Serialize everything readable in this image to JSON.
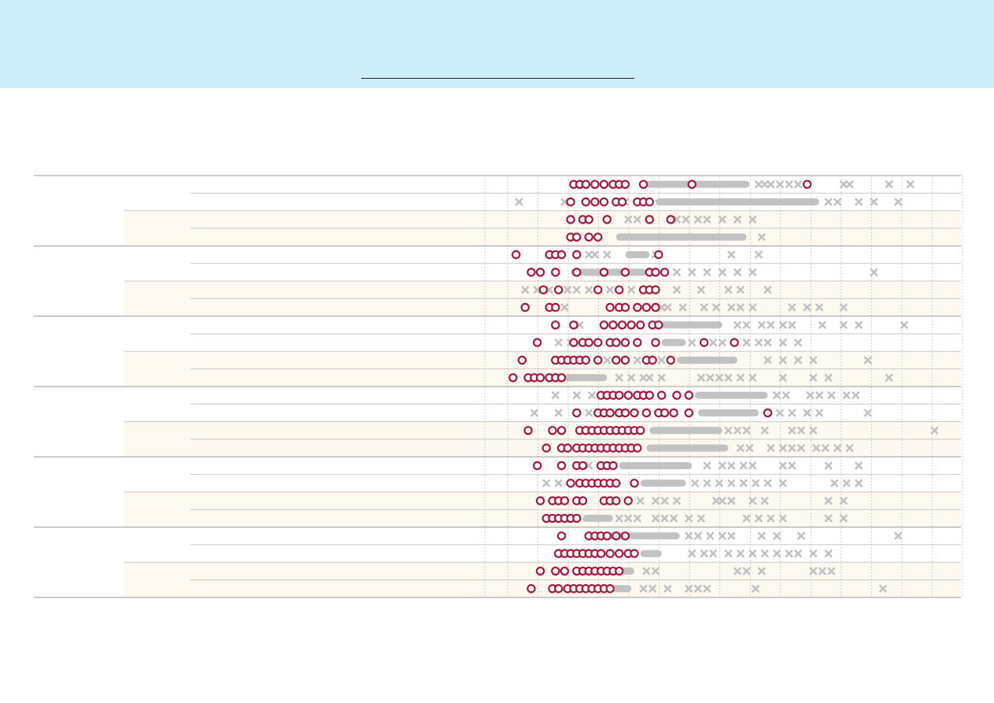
{
  "page": {
    "header_band_color": "#cdeefa",
    "row_band_color": "#fdf8f0",
    "grid_color": "#bbbbbb"
  },
  "chart_data": {
    "type": "scatter",
    "title": "",
    "xlabel": "",
    "ylabel": "",
    "xlim": [
      0,
      15
    ],
    "grid": true,
    "legend": "none",
    "series_styles": {
      "highlight": {
        "marker": "circle-open",
        "color": "#a6193e"
      },
      "others": {
        "marker": "x",
        "color": "#c2c2c2"
      }
    },
    "rows": [
      {
        "highlight": [
          2.1,
          2.3,
          2.5,
          2.8,
          3.1,
          3.4,
          3.6,
          3.8,
          4.4,
          6.0,
          9.8
        ],
        "others_dense": [
          4.5,
          7.9
        ],
        "others": [
          8.2,
          8.4,
          8.6,
          8.9,
          9.2,
          9.5,
          11.0,
          11.2,
          12.5,
          13.2
        ]
      },
      {
        "highlight": [
          2.0,
          2.5,
          2.8,
          3.1,
          3.5,
          3.7,
          4.2,
          4.4,
          4.6
        ],
        "others_dense": [
          4.8,
          10.2
        ],
        "others": [
          0.3,
          1.8,
          3.8,
          10.5,
          10.8,
          11.5,
          12.0,
          12.8
        ]
      },
      {
        "highlight": [
          2.0,
          2.4,
          2.6,
          3.2,
          4.6,
          5.3
        ],
        "others_dense": [],
        "others": [
          3.9,
          4.2,
          5.5,
          5.8,
          6.2,
          6.5,
          7.0,
          7.5,
          8.0
        ]
      },
      {
        "highlight": [
          2.0,
          2.2,
          2.6,
          2.9
        ],
        "others_dense": [
          3.5,
          7.8
        ],
        "others": [
          8.3
        ]
      },
      {
        "highlight": [
          0.2,
          1.3,
          1.5,
          1.7,
          2.2,
          4.9
        ],
        "others_dense": [
          3.8,
          4.6
        ],
        "others": [
          2.6,
          2.8,
          3.2,
          4.8,
          7.3,
          8.2
        ]
      },
      {
        "highlight": [
          0.7,
          1.0,
          1.5,
          2.2,
          3.1,
          3.8,
          4.6,
          4.8,
          5.1
        ],
        "others_dense": [
          2.0,
          4.5
        ],
        "others": [
          2.8,
          5.5,
          6.0,
          6.5,
          7.0,
          7.5,
          8.0,
          12.0
        ]
      },
      {
        "highlight": [
          1.1,
          1.6,
          2.9,
          3.6,
          4.4,
          4.6,
          4.8
        ],
        "others_dense": [],
        "others": [
          0.5,
          0.9,
          1.3,
          1.9,
          2.2,
          2.6,
          3.3,
          4.0,
          5.5,
          6.3,
          7.2,
          7.6,
          8.5
        ]
      },
      {
        "highlight": [
          0.5,
          1.3,
          1.5,
          3.3,
          3.6,
          3.8,
          4.2,
          4.5,
          4.8
        ],
        "others_dense": [],
        "others": [
          1.8,
          5.0,
          5.2,
          5.7,
          6.4,
          6.8,
          7.3,
          7.6,
          8.0,
          9.3,
          9.8,
          10.2,
          11.0
        ]
      },
      {
        "highlight": [
          1.5,
          2.1,
          3.1,
          3.4,
          3.7,
          4.0,
          4.3,
          4.7,
          4.9
        ],
        "others_dense": [
          5.0,
          7.0
        ],
        "others": [
          2.3,
          7.5,
          7.8,
          8.3,
          8.6,
          9.0,
          9.3,
          10.3,
          11.0,
          11.5,
          13.0
        ]
      },
      {
        "highlight": [
          0.9,
          2.1,
          2.4,
          2.6,
          2.9,
          3.3,
          3.5,
          3.8,
          4.2,
          4.8,
          6.4,
          7.4
        ],
        "others_dense": [
          5.0,
          5.8
        ],
        "others": [
          1.6,
          2.0,
          6.0,
          6.7,
          7.0,
          7.8,
          8.2,
          8.5,
          9.0,
          9.5
        ]
      },
      {
        "highlight": [
          0.4,
          1.5,
          1.7,
          1.9,
          2.1,
          2.3,
          2.5,
          2.9,
          3.5,
          3.8,
          4.5,
          4.7,
          5.3
        ],
        "others_dense": [
          5.5,
          7.5
        ],
        "others": [
          3.2,
          4.2,
          5.0,
          8.5,
          9.0,
          9.5,
          10.0,
          11.8
        ]
      },
      {
        "highlight": [
          0.1,
          0.6,
          0.8,
          1.0,
          1.3,
          1.5,
          1.7
        ],
        "others_dense": [
          1.8,
          3.2
        ],
        "others": [
          3.6,
          4.0,
          4.4,
          4.6,
          5.0,
          6.3,
          6.6,
          6.9,
          7.2,
          7.6,
          8.0,
          9.0,
          10.0,
          10.5,
          12.5
        ]
      },
      {
        "highlight": [
          3.0,
          3.2,
          3.4,
          3.6,
          3.9,
          4.2,
          4.4,
          4.6,
          5.0,
          5.5,
          5.9
        ],
        "others_dense": [
          6.1,
          8.5
        ],
        "others": [
          1.5,
          2.2,
          2.7,
          8.8,
          9.1,
          9.9,
          10.2,
          10.6,
          11.1,
          11.4
        ]
      },
      {
        "highlight": [
          2.2,
          2.9,
          3.1,
          3.3,
          3.6,
          3.8,
          4.1,
          4.5,
          4.9,
          5.1,
          5.4,
          5.9,
          8.5
        ],
        "others_dense": [
          6.2,
          8.2
        ],
        "others": [
          0.8,
          1.6,
          2.6,
          8.9,
          9.3,
          9.8,
          10.2,
          11.8
        ]
      },
      {
        "highlight": [
          0.6,
          1.4,
          1.7,
          2.3,
          2.5,
          2.7,
          2.9,
          3.1,
          3.3,
          3.5,
          3.7,
          3.9,
          4.1,
          4.3
        ],
        "others_dense": [
          4.6,
          7.0
        ],
        "others": [
          7.2,
          7.5,
          7.8,
          8.4,
          9.3,
          9.6,
          10.0,
          14.0
        ]
      },
      {
        "highlight": [
          1.2,
          1.7,
          1.9,
          2.2,
          2.4,
          2.6,
          2.8,
          3.0,
          3.2,
          3.4,
          3.6,
          3.8,
          4.0,
          4.2
        ],
        "others_dense": [
          4.5,
          7.2
        ],
        "others": [
          7.6,
          7.9,
          8.6,
          9.0,
          9.3,
          9.6,
          10.1,
          10.4,
          10.8,
          11.2
        ]
      },
      {
        "highlight": [
          0.9,
          1.7,
          2.2,
          2.4,
          3.0,
          3.2,
          3.4
        ],
        "others_dense": [
          3.6,
          6.0
        ],
        "others": [
          2.6,
          6.5,
          7.0,
          7.3,
          7.7,
          8.0,
          9.0,
          9.3,
          10.5,
          11.5
        ]
      },
      {
        "highlight": [
          2.0,
          2.3,
          2.5,
          2.7,
          2.9,
          3.1,
          3.3,
          3.5,
          4.1
        ],
        "others_dense": [
          4.3,
          5.8
        ],
        "others": [
          1.2,
          1.6,
          6.1,
          6.5,
          6.9,
          7.3,
          7.7,
          8.1,
          8.5,
          9.0,
          10.7,
          11.1,
          11.5
        ]
      },
      {
        "highlight": [
          1.0,
          1.4,
          1.6,
          1.8,
          2.2,
          2.4,
          3.1,
          3.3,
          3.5,
          3.9
        ],
        "others_dense": [],
        "others": [
          4.3,
          4.8,
          5.1,
          5.5,
          6.8,
          7.0,
          7.3,
          8.0,
          8.4,
          10.5,
          11.0
        ]
      },
      {
        "highlight": [
          1.2,
          1.4,
          1.6,
          1.8,
          2.0,
          2.2
        ],
        "others_dense": [
          2.4,
          3.4
        ],
        "others": [
          3.6,
          3.9,
          4.2,
          4.8,
          5.1,
          5.4,
          5.9,
          6.3,
          7.8,
          8.2,
          8.6,
          9.0,
          10.5,
          11.0
        ]
      },
      {
        "highlight": [
          1.7,
          2.6,
          2.8,
          3.0,
          3.2,
          3.5,
          3.8
        ],
        "others_dense": [
          3.0,
          5.6
        ],
        "others": [
          5.9,
          6.2,
          6.6,
          7.0,
          7.3,
          8.3,
          8.8,
          9.6,
          12.8
        ]
      },
      {
        "highlight": [
          1.6,
          1.8,
          2.0,
          2.2,
          2.4,
          2.6,
          2.8,
          3.0,
          3.3,
          3.6,
          3.9,
          4.1
        ],
        "others_dense": [
          4.3,
          5.0
        ],
        "others": [
          6.0,
          6.4,
          6.7,
          7.2,
          7.6,
          8.0,
          8.4,
          8.8,
          9.2,
          9.5,
          10.0,
          10.5
        ]
      },
      {
        "highlight": [
          1.0,
          1.5,
          1.8,
          2.2,
          2.4,
          2.6,
          2.8,
          3.0,
          3.2,
          3.4,
          3.6
        ],
        "others_dense": [
          3.6,
          4.1
        ],
        "others": [
          4.5,
          4.8,
          7.5,
          7.8,
          8.3,
          10.0,
          10.3,
          10.6
        ]
      },
      {
        "highlight": [
          0.7,
          1.4,
          1.6,
          1.9,
          2.1,
          2.3,
          2.5,
          2.7,
          2.9,
          3.1,
          3.3
        ],
        "others_dense": [
          3.2,
          4.0
        ],
        "others": [
          4.4,
          4.7,
          5.2,
          5.9,
          6.2,
          6.5,
          8.1,
          12.3
        ]
      }
    ]
  }
}
